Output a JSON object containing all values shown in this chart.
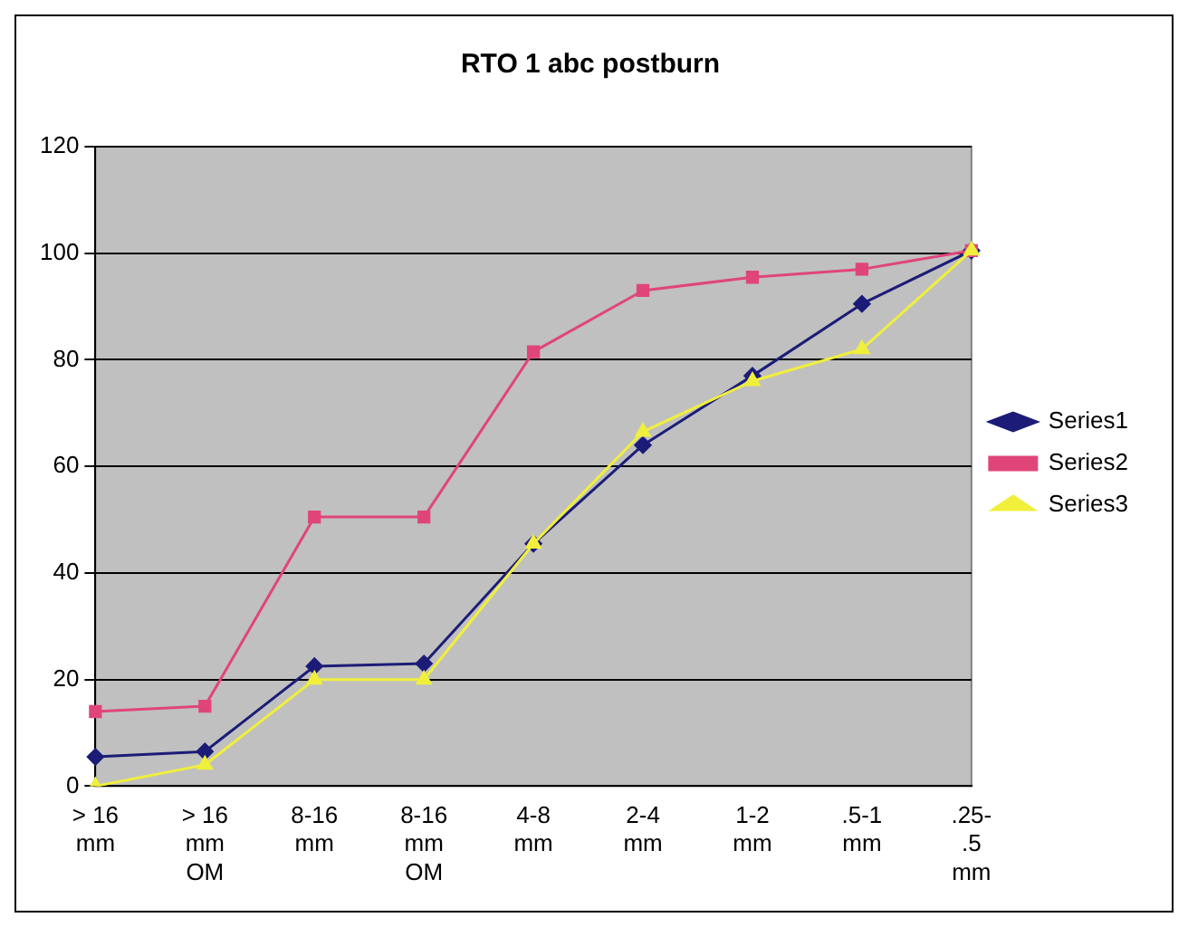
{
  "chart_data": {
    "type": "line",
    "title": "RTO 1 abc postburn",
    "categories": [
      "> 16\nmm",
      "> 16\nmm\nOM",
      "8-16\nmm",
      "8-16\nmm\nOM",
      "4-8\nmm",
      "2-4\nmm",
      "1-2\nmm",
      ".5-1\nmm",
      ".25-\n.5\nmm"
    ],
    "series": [
      {
        "name": "Series1",
        "color": "#1c1c78",
        "marker": "diamond",
        "values": [
          5.5,
          6.5,
          22.5,
          23,
          45.5,
          64,
          77,
          90.5,
          100.5
        ]
      },
      {
        "name": "Series2",
        "color": "#e0457a",
        "marker": "square",
        "values": [
          14,
          15,
          50.5,
          50.5,
          81.5,
          93,
          95.5,
          97,
          100.5
        ]
      },
      {
        "name": "Series3",
        "color": "#f0ef3c",
        "marker": "triangle",
        "values": [
          0,
          4,
          20,
          20,
          45.5,
          66.5,
          76,
          82,
          100.5
        ]
      }
    ],
    "ylim": [
      0,
      120
    ],
    "yticks": [
      0,
      20,
      40,
      60,
      80,
      100,
      120
    ],
    "grid": "y",
    "legend": "right"
  }
}
